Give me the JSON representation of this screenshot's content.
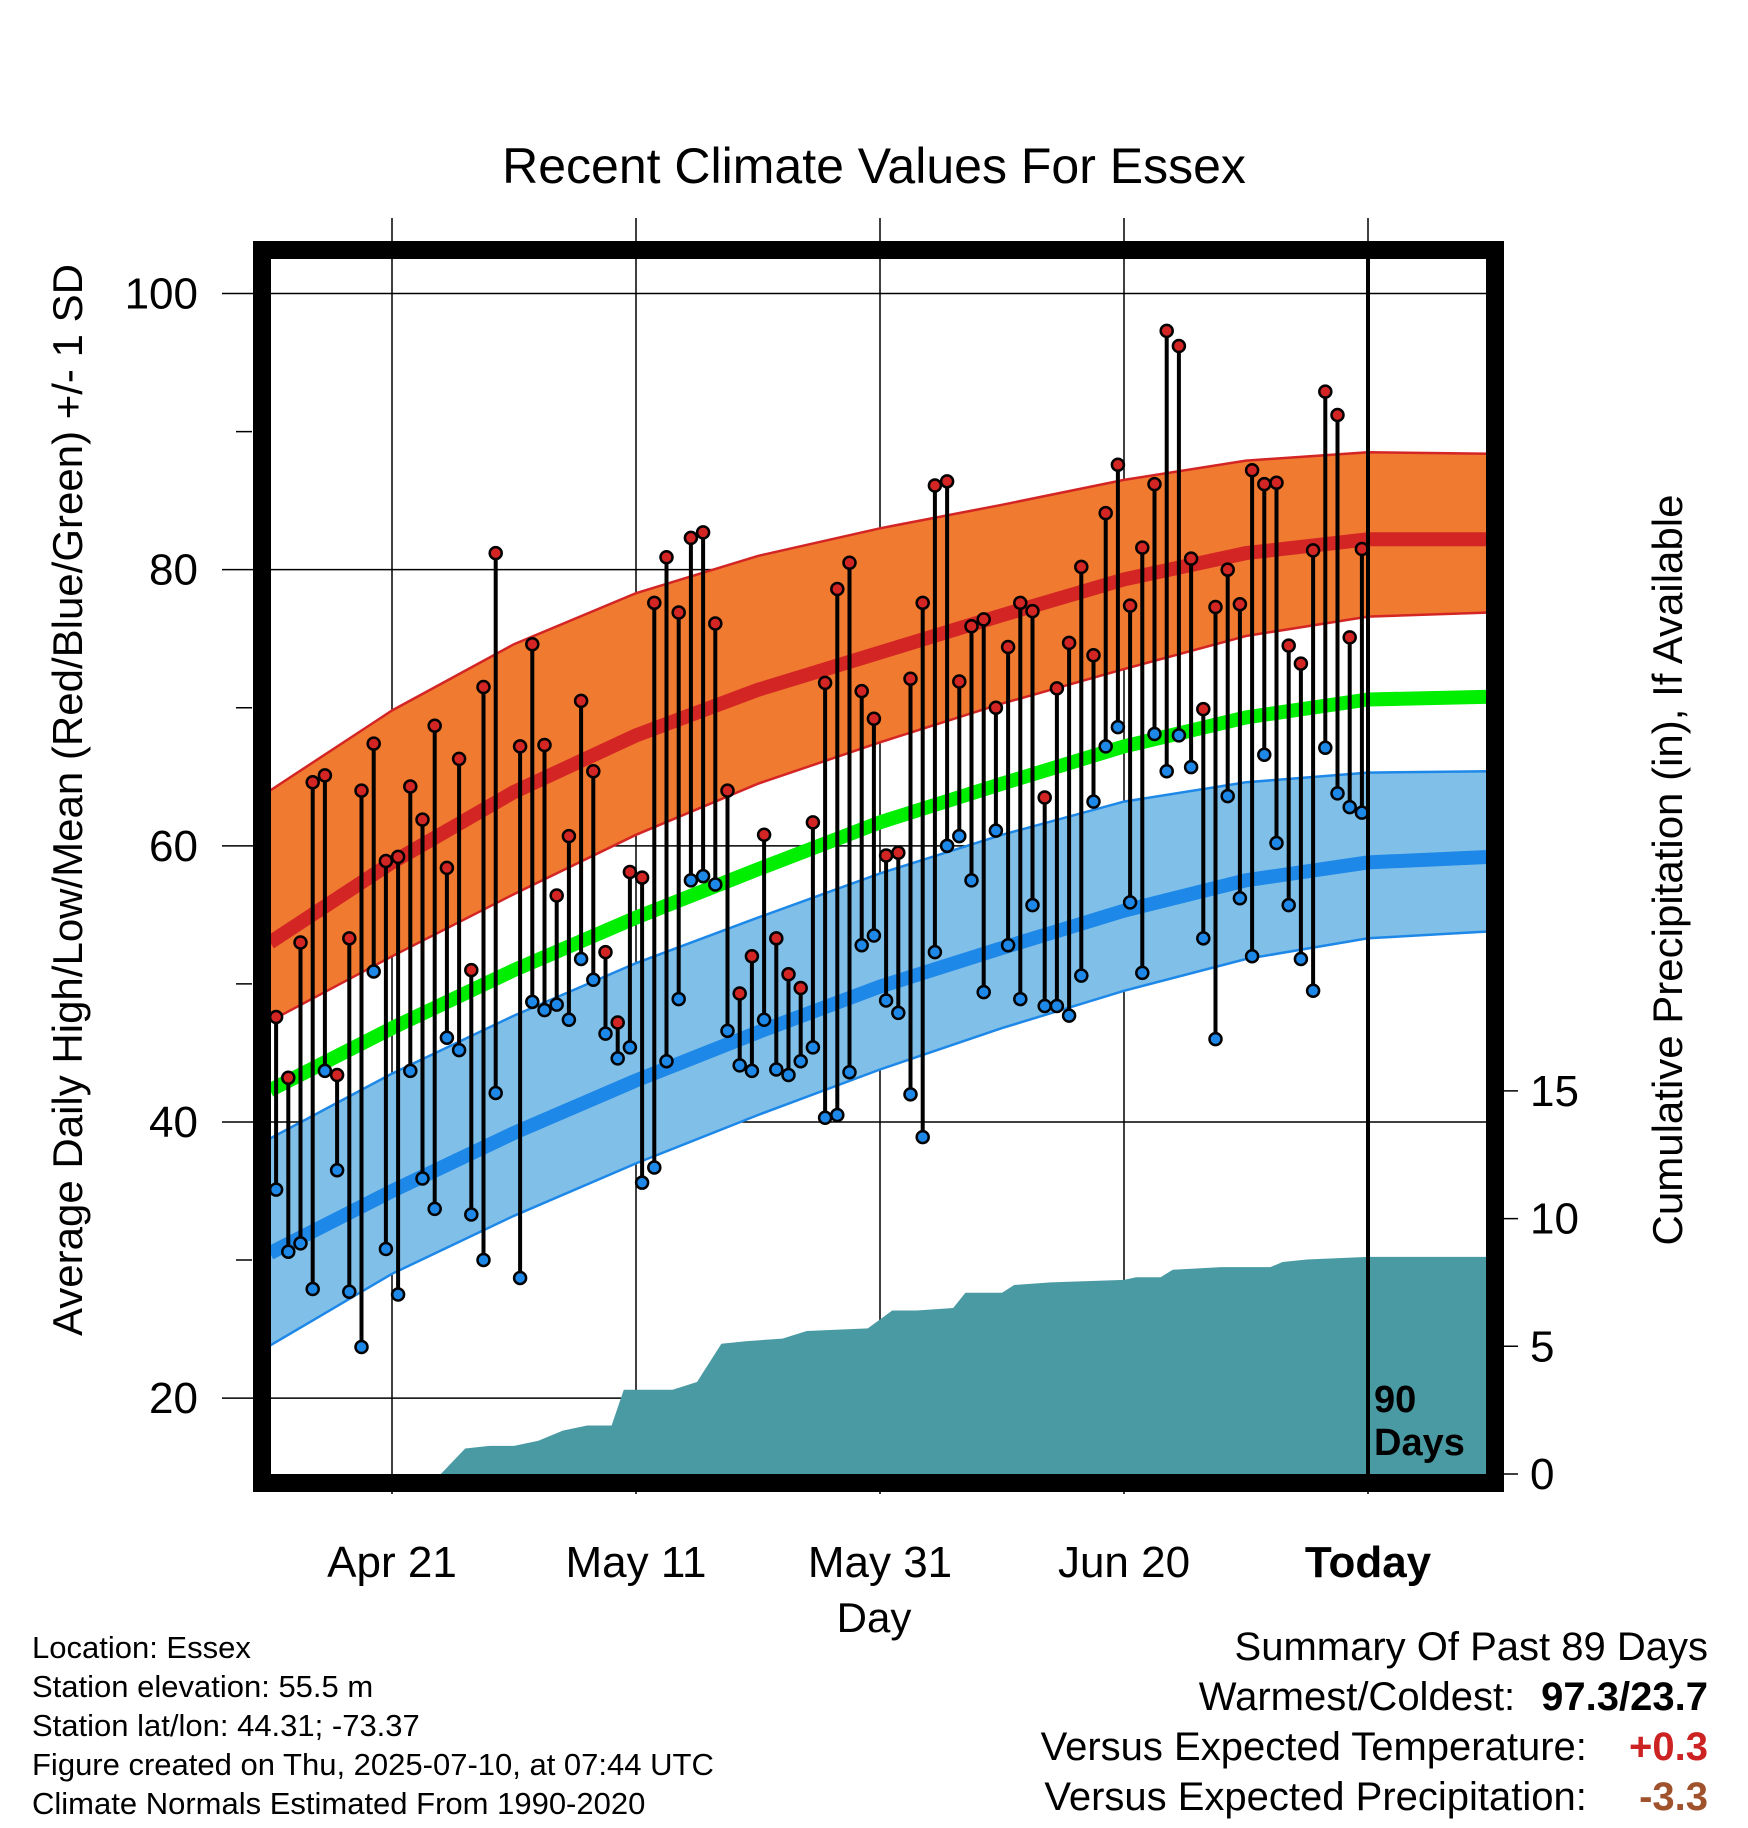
{
  "chart_data": {
    "type": "line",
    "title": "Recent Climate Values For Essex",
    "xlabel": "Day",
    "ylabel": "Average Daily High/Low/Mean (Red/Blue/Green) +/- 1 SD",
    "y2label": "Cumulative Precipitation (in), If Available",
    "x_ticks": [
      "Apr 21",
      "May 11",
      "May 31",
      "Jun 20",
      "Today"
    ],
    "y_ticks": [
      20,
      40,
      60,
      80,
      100
    ],
    "y2_ticks": [
      0,
      5,
      10,
      15
    ],
    "ylim": [
      14.5,
      103.3
    ],
    "y2lim": [
      0,
      48
    ],
    "day_range": [
      0,
      100
    ],
    "today_day": 90,
    "today_label": "90 Days",
    "grid": true,
    "colors": {
      "high": "#d42525",
      "low": "#1e88e8",
      "mean": "#00ee00",
      "high_band": "#f07a30",
      "low_band": "#80c0e8",
      "precip": "#4a9aa3",
      "frame": "#000000"
    },
    "normals_days": [
      0,
      10,
      20,
      30,
      40,
      50,
      60,
      70,
      80,
      90,
      100
    ],
    "normal_high": [
      53.0,
      58.8,
      63.9,
      68.0,
      71.3,
      74.0,
      76.7,
      79.3,
      81.2,
      82.2,
      82.2
    ],
    "high_sd_upper": [
      64.0,
      69.8,
      74.6,
      78.3,
      81.0,
      83.0,
      84.7,
      86.5,
      87.9,
      88.5,
      88.4
    ],
    "high_sd_lower": [
      47.3,
      52.0,
      56.5,
      60.8,
      64.5,
      67.5,
      70.3,
      72.8,
      75.2,
      76.6,
      76.9
    ],
    "normal_mean": [
      42.3,
      46.8,
      51.0,
      54.8,
      58.3,
      61.7,
      64.5,
      67.2,
      69.3,
      70.6,
      70.8
    ],
    "normal_low": [
      30.5,
      35.0,
      39.2,
      43.0,
      46.5,
      49.8,
      52.6,
      55.3,
      57.5,
      58.8,
      59.2
    ],
    "low_sd_upper": [
      38.8,
      43.5,
      47.7,
      51.5,
      54.8,
      58.0,
      60.8,
      63.2,
      64.6,
      65.3,
      65.4
    ],
    "low_sd_lower": [
      23.8,
      29.0,
      33.2,
      37.0,
      40.5,
      43.8,
      46.8,
      49.5,
      51.8,
      53.3,
      53.8
    ],
    "series": [
      {
        "name": "Daily High",
        "values": [
          47.6,
          43.2,
          53.0,
          64.6,
          65.1,
          43.4,
          53.3,
          64.0,
          67.4,
          58.9,
          59.2,
          64.3,
          61.9,
          68.7,
          58.4,
          66.3,
          51.0,
          71.5,
          81.2,
          null,
          67.2,
          74.6,
          67.3,
          56.4,
          60.7,
          70.5,
          65.4,
          52.3,
          47.2,
          58.1,
          57.7,
          77.6,
          80.9,
          76.9,
          82.3,
          82.7,
          76.1,
          64.0,
          49.3,
          52.0,
          60.8,
          53.3,
          50.7,
          49.7,
          61.7,
          71.8,
          78.6,
          80.5,
          71.2,
          69.2,
          59.3,
          59.5,
          72.1,
          77.6,
          86.1,
          86.4,
          71.9,
          75.9,
          76.4,
          70.0,
          74.4,
          77.6,
          77.0,
          63.5,
          71.4,
          74.7,
          80.2,
          73.8,
          84.1,
          87.6,
          77.4,
          81.6,
          86.2,
          97.3,
          96.2,
          80.8,
          69.9,
          77.3,
          80.0,
          77.5,
          87.2,
          86.2,
          86.3,
          74.5,
          73.2,
          81.4,
          92.9,
          91.2,
          75.1,
          81.5
        ]
      },
      {
        "name": "Daily Low",
        "values": [
          35.1,
          30.6,
          31.2,
          27.9,
          43.7,
          36.5,
          27.7,
          23.7,
          50.9,
          30.8,
          27.5,
          43.7,
          35.9,
          33.7,
          46.1,
          45.2,
          33.3,
          30.0,
          42.1,
          null,
          28.7,
          48.7,
          48.1,
          48.5,
          47.4,
          51.8,
          50.3,
          46.4,
          44.6,
          45.4,
          35.6,
          36.7,
          44.4,
          48.9,
          57.5,
          57.8,
          57.2,
          46.6,
          44.1,
          43.7,
          47.4,
          43.8,
          43.4,
          44.4,
          45.4,
          40.3,
          40.5,
          43.6,
          52.8,
          53.5,
          48.8,
          47.9,
          42.0,
          38.9,
          52.3,
          60.0,
          60.7,
          57.5,
          49.4,
          61.1,
          52.8,
          48.9,
          55.7,
          48.4,
          48.4,
          47.7,
          50.6,
          63.2,
          67.2,
          68.6,
          55.9,
          50.8,
          68.1,
          65.4,
          68.0,
          65.7,
          53.3,
          46.0,
          63.6,
          56.2,
          52.0,
          66.6,
          60.2,
          55.7,
          51.8,
          49.5,
          67.1,
          63.8,
          62.8,
          62.4
        ]
      }
    ],
    "precip_cumulative": [
      [
        0,
        0
      ],
      [
        14,
        0
      ],
      [
        16,
        1.0
      ],
      [
        18,
        1.1
      ],
      [
        20,
        1.1
      ],
      [
        22,
        1.3
      ],
      [
        24,
        1.7
      ],
      [
        26,
        1.9
      ],
      [
        28,
        1.9
      ],
      [
        29,
        3.3
      ],
      [
        33,
        3.3
      ],
      [
        35,
        3.6
      ],
      [
        37,
        5.1
      ],
      [
        39,
        5.2
      ],
      [
        42,
        5.3
      ],
      [
        44,
        5.6
      ],
      [
        49,
        5.7
      ],
      [
        51,
        6.4
      ],
      [
        53,
        6.4
      ],
      [
        56,
        6.5
      ],
      [
        57,
        7.1
      ],
      [
        60,
        7.1
      ],
      [
        61,
        7.4
      ],
      [
        64,
        7.5
      ],
      [
        70,
        7.6
      ],
      [
        71,
        7.7
      ],
      [
        73,
        7.7
      ],
      [
        74,
        8.0
      ],
      [
        78,
        8.1
      ],
      [
        82,
        8.1
      ],
      [
        83,
        8.3
      ],
      [
        85,
        8.4
      ],
      [
        90,
        8.5
      ],
      [
        100,
        8.5
      ]
    ]
  },
  "footer": {
    "location": "Location: Essex",
    "elevation": "Station elevation: 55.5 m",
    "latlon": "Station lat/lon: 44.31; -73.37",
    "created": "Figure created on Thu, 2025-07-10, at 07:44 UTC",
    "normals": "Climate Normals Estimated From 1990-2020"
  },
  "summary": {
    "heading": "Summary Of Past 89 Days",
    "warmest_label": "Warmest/Coldest:",
    "warmest_value": "97.3/23.7",
    "temp_label": "Versus Expected Temperature:",
    "temp_value": "+0.3",
    "temp_color": "#cc2222",
    "precip_label": "Versus Expected Precipitation:",
    "precip_value": "-3.3",
    "precip_color": "#a0522d"
  }
}
